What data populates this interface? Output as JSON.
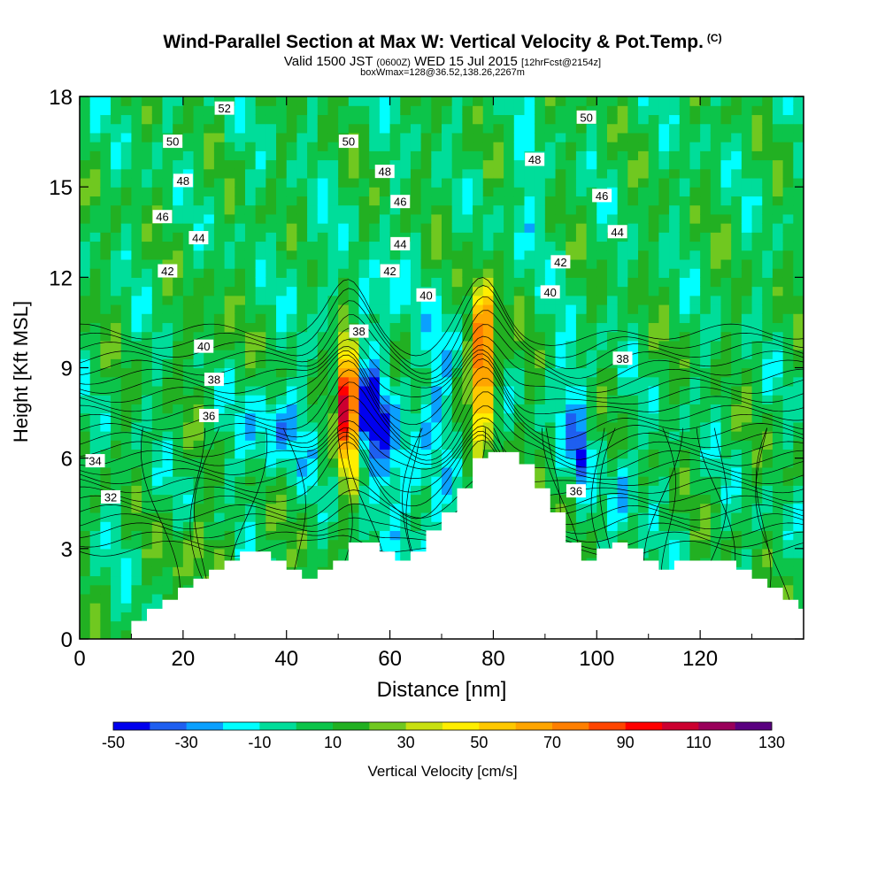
{
  "title": {
    "main": "Wind-Parallel Section at Max W: Vertical Velocity & Pot.Temp.",
    "copyright": "(C)",
    "valid_prefix": "Valid 1500 JST",
    "valid_utc": "(0600Z)",
    "valid_date": "WED 15 Jul 2015",
    "forecast": "[12hrFcst@2154z]",
    "box": "boxWmax=128@36.52,138.26,2267m"
  },
  "chart_data": {
    "type": "heatmap",
    "xlabel": "Distance [nm]",
    "ylabel": "Height [Kft MSL]",
    "xlim": [
      0,
      140
    ],
    "ylim": [
      0,
      18
    ],
    "x_ticks": [
      "0",
      "20",
      "40",
      "60",
      "80",
      "100",
      "120"
    ],
    "y_ticks": [
      "0",
      "3",
      "6",
      "9",
      "12",
      "15",
      "18"
    ],
    "colorbar": {
      "label": "Vertical Velocity [cm/s]",
      "tick_labels": [
        "-50",
        "-30",
        "-10",
        "10",
        "30",
        "50",
        "70",
        "90",
        "110",
        "130"
      ],
      "levels": [
        -50,
        -40,
        -30,
        -20,
        -10,
        0,
        10,
        20,
        30,
        40,
        50,
        60,
        70,
        80,
        90,
        100,
        110,
        120,
        130
      ],
      "colors": [
        "#0000ee",
        "#1e5ff0",
        "#0aa0ff",
        "#00ffff",
        "#00dd9a",
        "#0cc44a",
        "#22b022",
        "#70c820",
        "#c8e010",
        "#ffee00",
        "#ffc800",
        "#ffa500",
        "#ff7f00",
        "#ff4500",
        "#ff0000",
        "#cc0030",
        "#99005a",
        "#5a0080"
      ]
    },
    "background_w": 5,
    "updrafts": [
      {
        "x": 52,
        "z": 8.0,
        "peak": 128
      },
      {
        "x": 78,
        "z": 9.5,
        "peak": 95
      }
    ],
    "terrain": {
      "x": [
        0,
        10,
        13,
        16,
        19,
        22,
        25,
        28,
        31,
        34,
        37,
        40,
        43,
        46,
        49,
        52,
        55,
        58,
        61,
        64,
        67,
        70,
        73,
        76,
        79,
        82,
        85,
        88,
        91,
        94,
        97,
        100,
        103,
        106,
        109,
        112,
        115,
        118,
        121,
        124,
        127,
        130,
        133,
        136,
        139
      ],
      "z": [
        0,
        0.6,
        1.0,
        1.3,
        1.7,
        2.0,
        2.3,
        2.6,
        2.9,
        2.9,
        2.6,
        2.3,
        2.0,
        2.3,
        2.6,
        3.2,
        3.2,
        2.9,
        2.6,
        2.9,
        3.6,
        4.2,
        5.0,
        6.0,
        6.2,
        6.2,
        5.8,
        5.0,
        4.2,
        3.2,
        2.6,
        3.0,
        3.2,
        3.0,
        2.6,
        2.3,
        2.6,
        2.6,
        2.6,
        2.6,
        2.3,
        2.0,
        1.7,
        1.3,
        1.0
      ]
    },
    "theta_labels": [
      {
        "x": 28,
        "z": 17.6,
        "text": "52"
      },
      {
        "x": 18,
        "z": 16.5,
        "text": "50"
      },
      {
        "x": 52,
        "z": 16.5,
        "text": "50"
      },
      {
        "x": 98,
        "z": 17.3,
        "text": "50"
      },
      {
        "x": 20,
        "z": 15.2,
        "text": "48"
      },
      {
        "x": 59,
        "z": 15.5,
        "text": "48"
      },
      {
        "x": 88,
        "z": 15.9,
        "text": "48"
      },
      {
        "x": 16,
        "z": 14.0,
        "text": "46"
      },
      {
        "x": 62,
        "z": 14.5,
        "text": "46"
      },
      {
        "x": 101,
        "z": 14.7,
        "text": "46"
      },
      {
        "x": 23,
        "z": 13.3,
        "text": "44"
      },
      {
        "x": 62,
        "z": 13.1,
        "text": "44"
      },
      {
        "x": 104,
        "z": 13.5,
        "text": "44"
      },
      {
        "x": 17,
        "z": 12.2,
        "text": "42"
      },
      {
        "x": 60,
        "z": 12.2,
        "text": "42"
      },
      {
        "x": 93,
        "z": 12.5,
        "text": "42"
      },
      {
        "x": 67,
        "z": 11.4,
        "text": "40"
      },
      {
        "x": 91,
        "z": 11.5,
        "text": "40"
      },
      {
        "x": 24,
        "z": 9.7,
        "text": "40"
      },
      {
        "x": 54,
        "z": 10.2,
        "text": "38"
      },
      {
        "x": 105,
        "z": 9.3,
        "text": "38"
      },
      {
        "x": 26,
        "z": 8.6,
        "text": "38"
      },
      {
        "x": 25,
        "z": 7.4,
        "text": "36"
      },
      {
        "x": 96,
        "z": 4.9,
        "text": "36"
      },
      {
        "x": 3,
        "z": 5.9,
        "text": "34"
      },
      {
        "x": 6,
        "z": 4.7,
        "text": "32"
      }
    ]
  }
}
